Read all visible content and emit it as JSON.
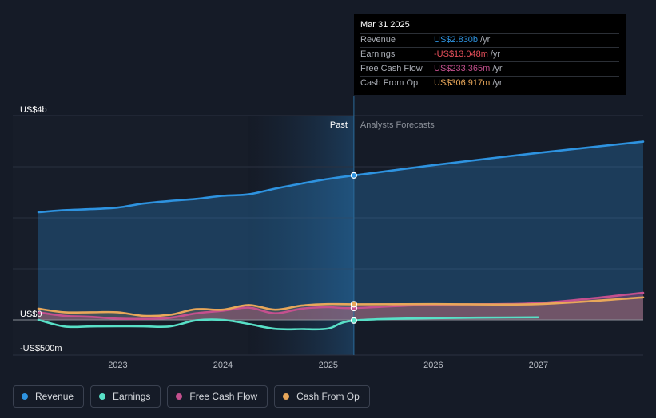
{
  "chart_data": {
    "type": "line",
    "x_range": [
      "2022-03-31",
      "2027-12-31"
    ],
    "ylim": [
      -500000000,
      4000000000
    ],
    "divider_date": "2025-03-31",
    "divider_labels": {
      "past": "Past",
      "forecast": "Analysts Forecasts"
    },
    "y_ticks": [
      {
        "value": 4000000000,
        "label": "US$4b"
      },
      {
        "value": 0,
        "label": "US$0"
      },
      {
        "value": -500000000,
        "label": "-US$500m"
      }
    ],
    "x_ticks": [
      {
        "date": "2023-01-01",
        "label": "2023"
      },
      {
        "date": "2024-01-01",
        "label": "2024"
      },
      {
        "date": "2025-01-01",
        "label": "2025"
      },
      {
        "date": "2026-01-01",
        "label": "2026"
      },
      {
        "date": "2027-01-01",
        "label": "2027"
      }
    ],
    "series": [
      {
        "name": "Revenue",
        "color": "#2e93e0",
        "fill": true,
        "points": [
          [
            "2022-03-31",
            2110000000.0
          ],
          [
            "2022-06-30",
            2150000000.0
          ],
          [
            "2022-09-30",
            2170000000.0
          ],
          [
            "2022-12-31",
            2200000000.0
          ],
          [
            "2023-03-31",
            2280000000.0
          ],
          [
            "2023-06-30",
            2330000000.0
          ],
          [
            "2023-09-30",
            2370000000.0
          ],
          [
            "2023-12-31",
            2430000000.0
          ],
          [
            "2024-03-31",
            2460000000.0
          ],
          [
            "2024-06-30",
            2570000000.0
          ],
          [
            "2024-09-30",
            2670000000.0
          ],
          [
            "2024-12-31",
            2760000000.0
          ],
          [
            "2025-03-31",
            2830000000.0
          ],
          [
            "2025-12-31",
            3030000000.0
          ],
          [
            "2026-12-31",
            3270000000.0
          ],
          [
            "2027-12-31",
            3490000000.0
          ]
        ]
      },
      {
        "name": "Earnings",
        "color": "#58e0c7",
        "fill": false,
        "points": [
          [
            "2022-03-31",
            0.0
          ],
          [
            "2022-06-30",
            -130000000.0
          ],
          [
            "2022-09-30",
            -128000000.0
          ],
          [
            "2022-12-31",
            -125000000.0
          ],
          [
            "2023-03-31",
            -126000000.0
          ],
          [
            "2023-06-30",
            -128000000.0
          ],
          [
            "2023-09-30",
            -10000000.0
          ],
          [
            "2023-12-31",
            0.0
          ],
          [
            "2024-03-31",
            -80000000.0
          ],
          [
            "2024-06-30",
            -175000000.0
          ],
          [
            "2024-09-30",
            -180000000.0
          ],
          [
            "2024-12-31",
            -170000000.0
          ],
          [
            "2025-03-31",
            -13048000.0
          ],
          [
            "2025-12-31",
            35000000.0
          ],
          [
            "2026-12-31",
            50000000.0
          ]
        ]
      },
      {
        "name": "Free Cash Flow",
        "color": "#c4508e",
        "fill": true,
        "points": [
          [
            "2022-03-31",
            150000000.0
          ],
          [
            "2022-06-30",
            80000000.0
          ],
          [
            "2022-09-30",
            60000000.0
          ],
          [
            "2022-12-31",
            25000000.0
          ],
          [
            "2023-03-31",
            20000000.0
          ],
          [
            "2023-06-30",
            40000000.0
          ],
          [
            "2023-09-30",
            130000000.0
          ],
          [
            "2023-12-31",
            180000000.0
          ],
          [
            "2024-03-31",
            240000000.0
          ],
          [
            "2024-06-30",
            130000000.0
          ],
          [
            "2024-09-30",
            220000000.0
          ],
          [
            "2024-12-31",
            250000000.0
          ],
          [
            "2025-03-31",
            233365000.0
          ],
          [
            "2025-12-31",
            300000000.0
          ],
          [
            "2026-12-31",
            330000000.0
          ],
          [
            "2027-12-31",
            530000000.0
          ]
        ]
      },
      {
        "name": "Cash From Op",
        "color": "#e8a75a",
        "fill": true,
        "points": [
          [
            "2022-03-31",
            220000000.0
          ],
          [
            "2022-06-30",
            150000000.0
          ],
          [
            "2022-09-30",
            150000000.0
          ],
          [
            "2022-12-31",
            150000000.0
          ],
          [
            "2023-03-31",
            80000000.0
          ],
          [
            "2023-06-30",
            100000000.0
          ],
          [
            "2023-09-30",
            210000000.0
          ],
          [
            "2023-12-31",
            200000000.0
          ],
          [
            "2024-03-31",
            290000000.0
          ],
          [
            "2024-06-30",
            200000000.0
          ],
          [
            "2024-09-30",
            280000000.0
          ],
          [
            "2024-12-31",
            310000000.0
          ],
          [
            "2025-03-31",
            306917000.0
          ],
          [
            "2025-12-31",
            310000000.0
          ],
          [
            "2026-12-31",
            310000000.0
          ],
          [
            "2027-12-31",
            440000000.0
          ]
        ]
      }
    ]
  },
  "tooltip": {
    "date": "Mar 31 2025",
    "rows": [
      {
        "label": "Revenue",
        "value": "US$2.830b",
        "unit": "/yr",
        "color": "#2e93e0"
      },
      {
        "label": "Earnings",
        "value": "-US$13.048m",
        "unit": "/yr",
        "color": "#e8505b"
      },
      {
        "label": "Free Cash Flow",
        "value": "US$233.365m",
        "unit": "/yr",
        "color": "#c4508e"
      },
      {
        "label": "Cash From Op",
        "value": "US$306.917m",
        "unit": "/yr",
        "color": "#e8a75a"
      }
    ]
  },
  "legend": [
    {
      "label": "Revenue",
      "color": "#2e93e0"
    },
    {
      "label": "Earnings",
      "color": "#58e0c7"
    },
    {
      "label": "Free Cash Flow",
      "color": "#c4508e"
    },
    {
      "label": "Cash From Op",
      "color": "#e8a75a"
    }
  ]
}
